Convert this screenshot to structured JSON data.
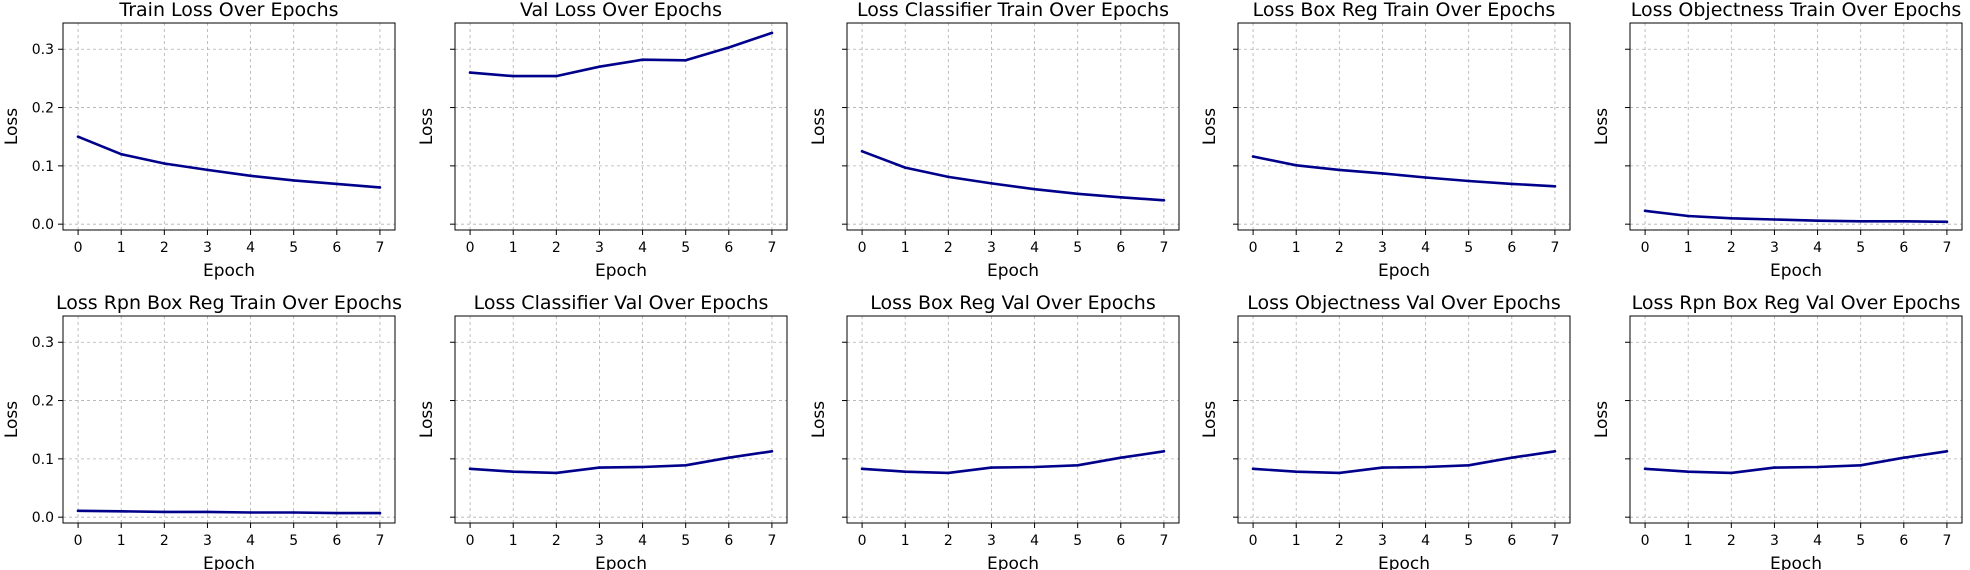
{
  "style": {
    "line_color": "#00008b",
    "grid": true,
    "grid_color": "#b0b0b0"
  },
  "chart_data": [
    {
      "type": "line",
      "title": "Train Loss Over Epochs",
      "xlabel": "Epoch",
      "ylabel": "Loss",
      "x": [
        0,
        1,
        2,
        3,
        4,
        5,
        6,
        7
      ],
      "ylim": [
        -0.01,
        0.345
      ],
      "xticks": [
        "0",
        "1",
        "2",
        "3",
        "4",
        "5",
        "6",
        "7"
      ],
      "yticks": [
        "0.0",
        "0.1",
        "0.2",
        "0.3"
      ],
      "show_yticklabels": true,
      "series": [
        {
          "values": [
            0.15,
            0.12,
            0.104,
            0.093,
            0.083,
            0.075,
            0.069,
            0.063
          ]
        }
      ]
    },
    {
      "type": "line",
      "title": "Val Loss Over Epochs",
      "xlabel": "Epoch",
      "ylabel": "Loss",
      "x": [
        0,
        1,
        2,
        3,
        4,
        5,
        6,
        7
      ],
      "ylim": [
        -0.01,
        0.345
      ],
      "xticks": [
        "0",
        "1",
        "2",
        "3",
        "4",
        "5",
        "6",
        "7"
      ],
      "yticks": [
        "0.0",
        "0.1",
        "0.2",
        "0.3"
      ],
      "show_yticklabels": false,
      "series": [
        {
          "values": [
            0.26,
            0.254,
            0.254,
            0.27,
            0.282,
            0.281,
            0.303,
            0.328
          ]
        }
      ]
    },
    {
      "type": "line",
      "title": "Loss Classifier Train Over Epochs",
      "xlabel": "Epoch",
      "ylabel": "Loss",
      "x": [
        0,
        1,
        2,
        3,
        4,
        5,
        6,
        7
      ],
      "ylim": [
        -0.01,
        0.345
      ],
      "xticks": [
        "0",
        "1",
        "2",
        "3",
        "4",
        "5",
        "6",
        "7"
      ],
      "yticks": [
        "0.0",
        "0.1",
        "0.2",
        "0.3"
      ],
      "show_yticklabels": false,
      "series": [
        {
          "values": [
            0.125,
            0.097,
            0.081,
            0.07,
            0.06,
            0.052,
            0.046,
            0.041
          ]
        }
      ]
    },
    {
      "type": "line",
      "title": "Loss Box Reg Train Over Epochs",
      "xlabel": "Epoch",
      "ylabel": "Loss",
      "x": [
        0,
        1,
        2,
        3,
        4,
        5,
        6,
        7
      ],
      "ylim": [
        -0.01,
        0.345
      ],
      "xticks": [
        "0",
        "1",
        "2",
        "3",
        "4",
        "5",
        "6",
        "7"
      ],
      "yticks": [
        "0.0",
        "0.1",
        "0.2",
        "0.3"
      ],
      "show_yticklabels": false,
      "series": [
        {
          "values": [
            0.116,
            0.101,
            0.093,
            0.087,
            0.08,
            0.074,
            0.069,
            0.065
          ]
        }
      ]
    },
    {
      "type": "line",
      "title": "Loss Objectness Train Over Epochs",
      "xlabel": "Epoch",
      "ylabel": "Loss",
      "x": [
        0,
        1,
        2,
        3,
        4,
        5,
        6,
        7
      ],
      "ylim": [
        -0.01,
        0.345
      ],
      "xticks": [
        "0",
        "1",
        "2",
        "3",
        "4",
        "5",
        "6",
        "7"
      ],
      "yticks": [
        "0.0",
        "0.1",
        "0.2",
        "0.3"
      ],
      "show_yticklabels": false,
      "series": [
        {
          "values": [
            0.023,
            0.014,
            0.01,
            0.008,
            0.006,
            0.005,
            0.005,
            0.004
          ]
        }
      ]
    },
    {
      "type": "line",
      "title": "Loss Rpn Box Reg Train Over Epochs",
      "xlabel": "Epoch",
      "ylabel": "Loss",
      "x": [
        0,
        1,
        2,
        3,
        4,
        5,
        6,
        7
      ],
      "ylim": [
        -0.01,
        0.345
      ],
      "xticks": [
        "0",
        "1",
        "2",
        "3",
        "4",
        "5",
        "6",
        "7"
      ],
      "yticks": [
        "0.0",
        "0.1",
        "0.2",
        "0.3"
      ],
      "show_yticklabels": true,
      "series": [
        {
          "values": [
            0.011,
            0.01,
            0.009,
            0.009,
            0.008,
            0.008,
            0.007,
            0.007
          ]
        }
      ]
    },
    {
      "type": "line",
      "title": "Loss Classifier Val Over Epochs",
      "xlabel": "Epoch",
      "ylabel": "Loss",
      "x": [
        0,
        1,
        2,
        3,
        4,
        5,
        6,
        7
      ],
      "ylim": [
        -0.01,
        0.345
      ],
      "xticks": [
        "0",
        "1",
        "2",
        "3",
        "4",
        "5",
        "6",
        "7"
      ],
      "yticks": [
        "0.0",
        "0.1",
        "0.2",
        "0.3"
      ],
      "show_yticklabels": false,
      "series": [
        {
          "values": [
            0.083,
            0.078,
            0.076,
            0.085,
            0.086,
            0.089,
            0.102,
            0.113
          ]
        }
      ]
    },
    {
      "type": "line",
      "title": "Loss Box Reg Val Over Epochs",
      "xlabel": "Epoch",
      "ylabel": "Loss",
      "x": [
        0,
        1,
        2,
        3,
        4,
        5,
        6,
        7
      ],
      "ylim": [
        -0.01,
        0.345
      ],
      "xticks": [
        "0",
        "1",
        "2",
        "3",
        "4",
        "5",
        "6",
        "7"
      ],
      "yticks": [
        "0.0",
        "0.1",
        "0.2",
        "0.3"
      ],
      "show_yticklabels": false,
      "series": [
        {
          "values": [
            0.083,
            0.078,
            0.076,
            0.085,
            0.086,
            0.089,
            0.102,
            0.113
          ]
        }
      ]
    },
    {
      "type": "line",
      "title": "Loss Objectness Val Over Epochs",
      "xlabel": "Epoch",
      "ylabel": "Loss",
      "x": [
        0,
        1,
        2,
        3,
        4,
        5,
        6,
        7
      ],
      "ylim": [
        -0.01,
        0.345
      ],
      "xticks": [
        "0",
        "1",
        "2",
        "3",
        "4",
        "5",
        "6",
        "7"
      ],
      "yticks": [
        "0.0",
        "0.1",
        "0.2",
        "0.3"
      ],
      "show_yticklabels": false,
      "series": [
        {
          "values": [
            0.083,
            0.078,
            0.076,
            0.085,
            0.086,
            0.089,
            0.102,
            0.113
          ]
        }
      ]
    },
    {
      "type": "line",
      "title": "Loss Rpn Box Reg Val Over Epochs",
      "xlabel": "Epoch",
      "ylabel": "Loss",
      "x": [
        0,
        1,
        2,
        3,
        4,
        5,
        6,
        7
      ],
      "ylim": [
        -0.01,
        0.345
      ],
      "xticks": [
        "0",
        "1",
        "2",
        "3",
        "4",
        "5",
        "6",
        "7"
      ],
      "yticks": [
        "0.0",
        "0.1",
        "0.2",
        "0.3"
      ],
      "show_yticklabels": false,
      "series": [
        {
          "values": [
            0.083,
            0.078,
            0.076,
            0.085,
            0.086,
            0.089,
            0.102,
            0.113
          ]
        }
      ]
    }
  ]
}
